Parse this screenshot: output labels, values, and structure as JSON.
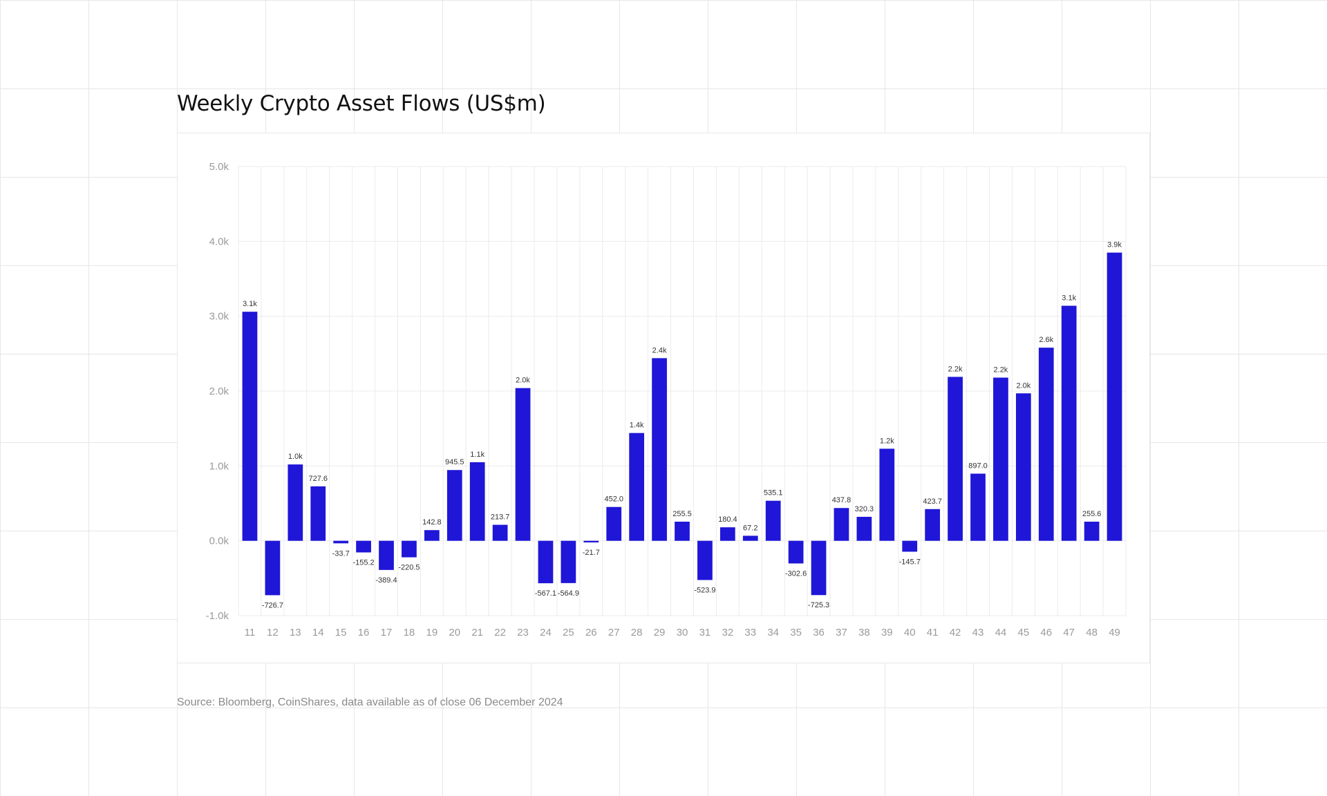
{
  "title": "Weekly Crypto Asset Flows (US$m)",
  "source": "Source: Bloomberg, CoinShares, data available as of close 06 December 2024",
  "colors": {
    "bar": "#1f16d8",
    "grid": "#ebebeb",
    "tick": "#9a9a9a",
    "label": "#333333"
  },
  "chart_data": {
    "type": "bar",
    "title": "Weekly Crypto Asset Flows (US$m)",
    "xlabel": "",
    "ylabel": "",
    "ylim": [
      -1000,
      5000
    ],
    "yticks": [
      -1000,
      0,
      1000,
      2000,
      3000,
      4000,
      5000
    ],
    "ytick_labels": [
      "-1.0k",
      "0.0k",
      "1.0k",
      "2.0k",
      "3.0k",
      "4.0k",
      "5.0k"
    ],
    "grid": true,
    "categories": [
      "11",
      "12",
      "13",
      "14",
      "15",
      "16",
      "17",
      "18",
      "19",
      "20",
      "21",
      "22",
      "23",
      "24",
      "25",
      "26",
      "27",
      "28",
      "29",
      "30",
      "31",
      "32",
      "33",
      "34",
      "35",
      "36",
      "37",
      "38",
      "39",
      "40",
      "41",
      "42",
      "43",
      "44",
      "45",
      "46",
      "47",
      "48",
      "49"
    ],
    "values": [
      3060,
      -726.7,
      1020,
      727.6,
      -33.7,
      -155.2,
      -389.4,
      -220.5,
      142.8,
      945.5,
      1050,
      213.7,
      2040,
      -567.1,
      -564.9,
      -21.7,
      452.0,
      1440,
      2440,
      255.5,
      -523.9,
      180.4,
      67.2,
      535.1,
      -302.6,
      -725.3,
      437.8,
      320.3,
      1230,
      -145.7,
      423.7,
      2190,
      897.0,
      2180,
      1970,
      2580,
      3140,
      255.6,
      3850
    ],
    "data_labels": [
      "3.1k",
      "-726.7",
      "1.0k",
      "727.6",
      "-33.7",
      "-155.2",
      "-389.4",
      "-220.5",
      "142.8",
      "945.5",
      "1.1k",
      "213.7",
      "2.0k",
      "-567.1",
      "-564.9",
      "-21.7",
      "452.0",
      "1.4k",
      "2.4k",
      "255.5",
      "-523.9",
      "180.4",
      "67.2",
      "535.1",
      "-302.6",
      "-725.3",
      "437.8",
      "320.3",
      "1.2k",
      "-145.7",
      "423.7",
      "2.2k",
      "897.0",
      "2.2k",
      "2.0k",
      "2.6k",
      "3.1k",
      "255.6",
      "3.9k"
    ]
  }
}
